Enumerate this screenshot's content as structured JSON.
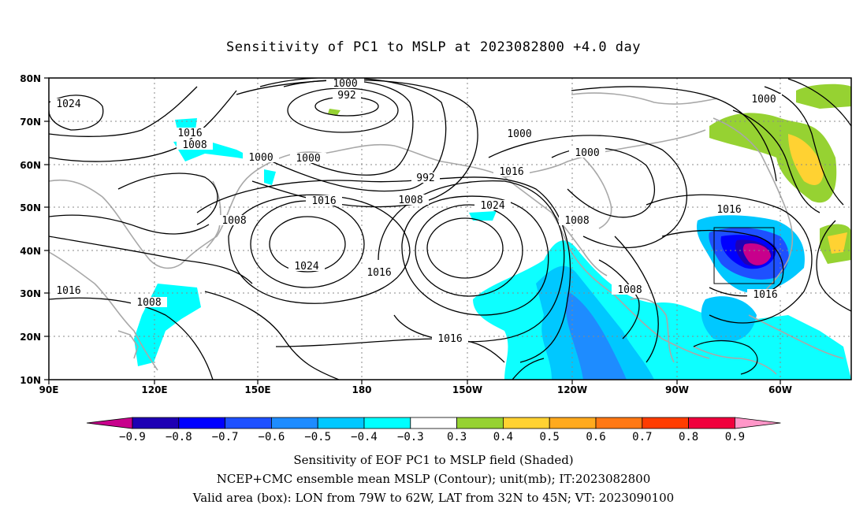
{
  "title": "Sensitivity of PC1 to MSLP at 2023082800 +4.0 day",
  "axes": {
    "lat_labels": [
      "80N",
      "70N",
      "60N",
      "50N",
      "40N",
      "30N",
      "20N",
      "10N"
    ],
    "lon_labels": [
      "90E",
      "120E",
      "150E",
      "180",
      "150W",
      "120W",
      "90W",
      "60W"
    ]
  },
  "contour_labels": [
    "1000",
    "992",
    "1024",
    "1016",
    "1008",
    "1000",
    "1000",
    "1000",
    "992",
    "1008",
    "1016",
    "1024",
    "1008",
    "1016",
    "1024",
    "1016",
    "1008",
    "1016",
    "1000",
    "1000",
    "1016",
    "1016",
    "1008",
    "1008",
    "1016"
  ],
  "colorbar": {
    "labels": [
      "-0.9",
      "-0.8",
      "-0.7",
      "-0.6",
      "-0.5",
      "-0.4",
      "-0.3",
      "0.3",
      "0.4",
      "0.5",
      "0.6",
      "0.7",
      "0.8",
      "0.9"
    ],
    "colors": [
      "#c8008c",
      "#1e00b4",
      "#0000ff",
      "#1e50ff",
      "#1e8cff",
      "#00c8ff",
      "#00ffff",
      "#ffffff",
      "#96d232",
      "#ffd232",
      "#ffaa1e",
      "#ff7814",
      "#ff3c00",
      "#f0003c",
      "#ff96c8"
    ]
  },
  "captions": [
    "Sensitivity of EOF PC1 to MSLP field (Shaded)",
    "NCEP+CMC ensemble mean MSLP (Contour); unit(mb); IT:2023082800",
    "Valid area (box): LON from 79W to 62W, LAT from 32N to 45N; VT: 2023090100"
  ]
}
